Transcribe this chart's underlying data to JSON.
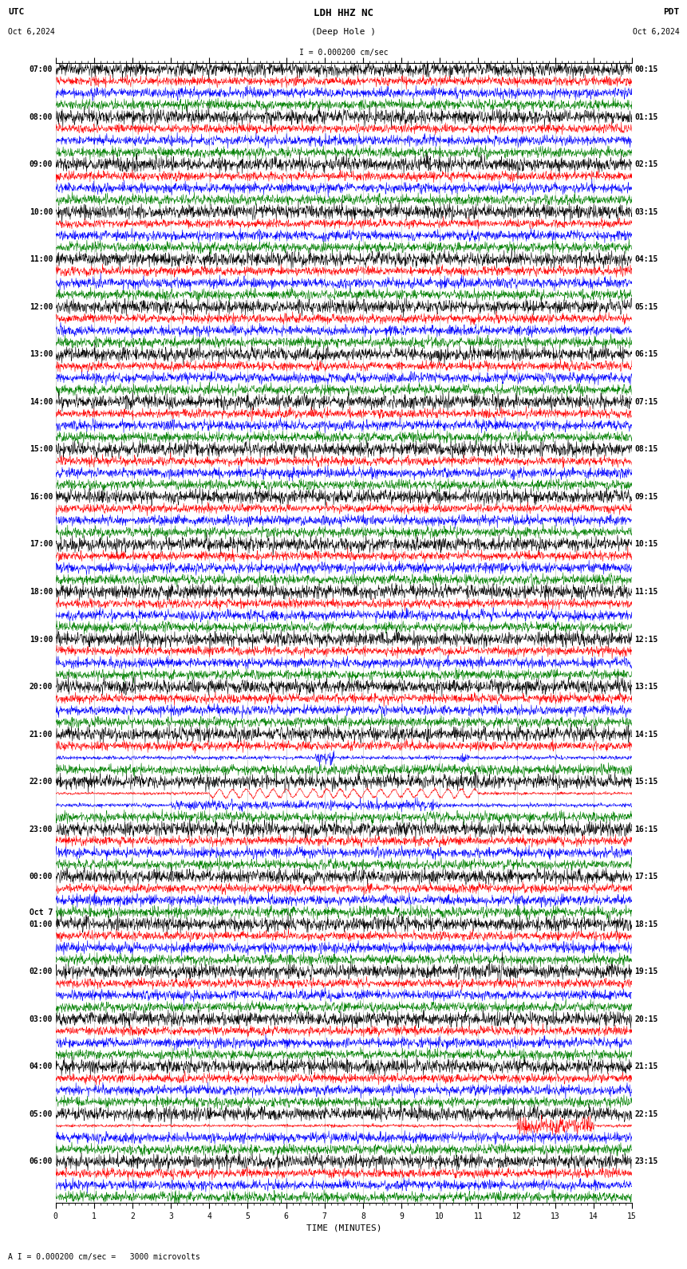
{
  "title_line1": "LDH HHZ NC",
  "title_line2": "(Deep Hole )",
  "scale_label": "I = 0.000200 cm/sec",
  "footer_label": "A I = 0.000200 cm/sec =   3000 microvolts",
  "utc_label": "UTC",
  "pdt_label": "PDT",
  "date_left": "Oct 6,2024",
  "date_right": "Oct 6,2024",
  "xlabel": "TIME (MINUTES)",
  "background_color": "#ffffff",
  "trace_colors": [
    "black",
    "red",
    "blue",
    "green"
  ],
  "num_rows": 24,
  "traces_per_row": 4,
  "minutes": 15,
  "utc_times": [
    "07:00",
    "08:00",
    "09:00",
    "10:00",
    "11:00",
    "12:00",
    "13:00",
    "14:00",
    "15:00",
    "16:00",
    "17:00",
    "18:00",
    "19:00",
    "20:00",
    "21:00",
    "22:00",
    "23:00",
    "00:00",
    "01:00",
    "02:00",
    "03:00",
    "04:00",
    "05:00",
    "06:00"
  ],
  "pdt_times": [
    "00:15",
    "01:15",
    "02:15",
    "03:15",
    "04:15",
    "05:15",
    "06:15",
    "07:15",
    "08:15",
    "09:15",
    "10:15",
    "11:15",
    "12:15",
    "13:15",
    "14:15",
    "15:15",
    "16:15",
    "17:15",
    "18:15",
    "19:15",
    "20:15",
    "21:15",
    "22:15",
    "23:15"
  ],
  "oct7_row": 17,
  "figsize": [
    8.5,
    15.84
  ],
  "dpi": 100,
  "font_size": 7,
  "title_font_size": 9,
  "grid_color": "#888888",
  "grid_alpha": 0.5
}
